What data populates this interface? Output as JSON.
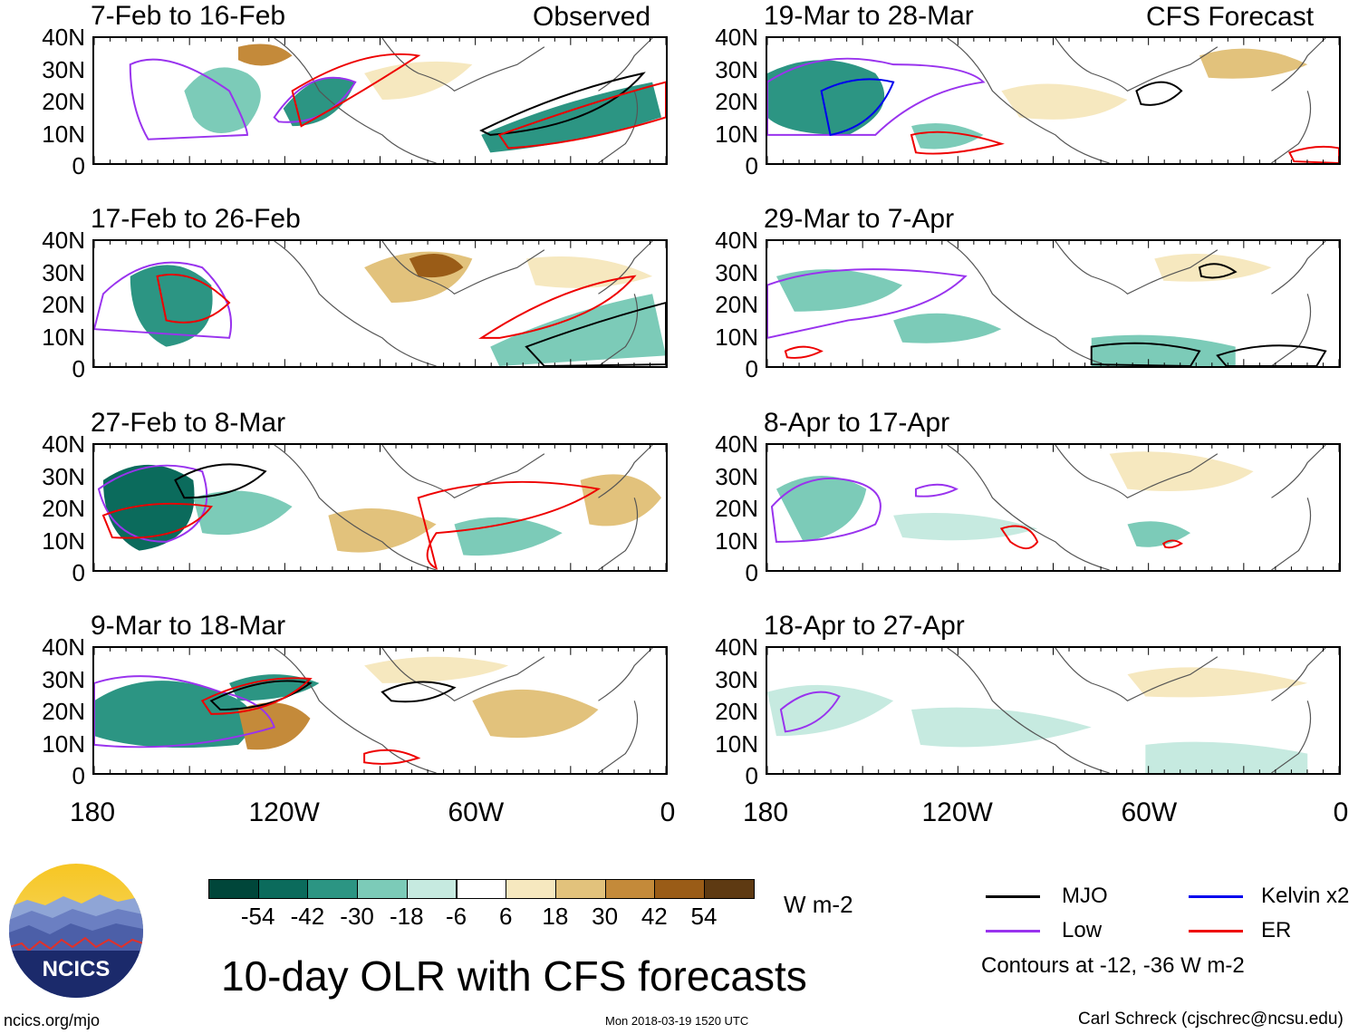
{
  "header": {
    "left_label": "Observed",
    "right_label": "CFS Forecast"
  },
  "observed_panels": [
    {
      "title": "7-Feb to 16-Feb"
    },
    {
      "title": "17-Feb to 26-Feb"
    },
    {
      "title": "27-Feb to 8-Mar"
    },
    {
      "title": "9-Mar to 18-Mar"
    }
  ],
  "forecast_panels": [
    {
      "title": "19-Mar to 28-Mar"
    },
    {
      "title": "29-Mar to 7-Apr"
    },
    {
      "title": "8-Apr to 17-Apr"
    },
    {
      "title": "18-Apr to 27-Apr"
    }
  ],
  "y_axis": [
    "40N",
    "30N",
    "20N",
    "10N",
    "0"
  ],
  "x_axis": [
    "180",
    "120W",
    "60W",
    "0"
  ],
  "colorbar": {
    "labels": [
      "-54",
      "-42",
      "-30",
      "-18",
      "-6",
      "6",
      "18",
      "30",
      "42",
      "54"
    ],
    "colors": [
      "#00463a",
      "#0b6b5c",
      "#2c9583",
      "#7ccbb8",
      "#c6eae0",
      "#ffffff",
      "#f6e8bf",
      "#e2c27c",
      "#c48a3a",
      "#9a5c17",
      "#5e3a12"
    ],
    "units": "W m-2"
  },
  "legend": {
    "items": [
      {
        "label": "MJO",
        "color": "#000000"
      },
      {
        "label": "Kelvin x2",
        "color": "#0000ee"
      },
      {
        "label": "Low",
        "color": "#9933ee"
      },
      {
        "label": "ER",
        "color": "#ee0000"
      }
    ],
    "note": "Contours at -12, -36 W m-2"
  },
  "main_title": "10-day OLR with CFS forecasts",
  "logo_text": "NCICS",
  "footer": {
    "url": "ncics.org/mjo",
    "timestamp": "Mon 2018-03-19 1520 UTC",
    "credit": "Carl Schreck (cjschrec@ncsu.edu)"
  }
}
